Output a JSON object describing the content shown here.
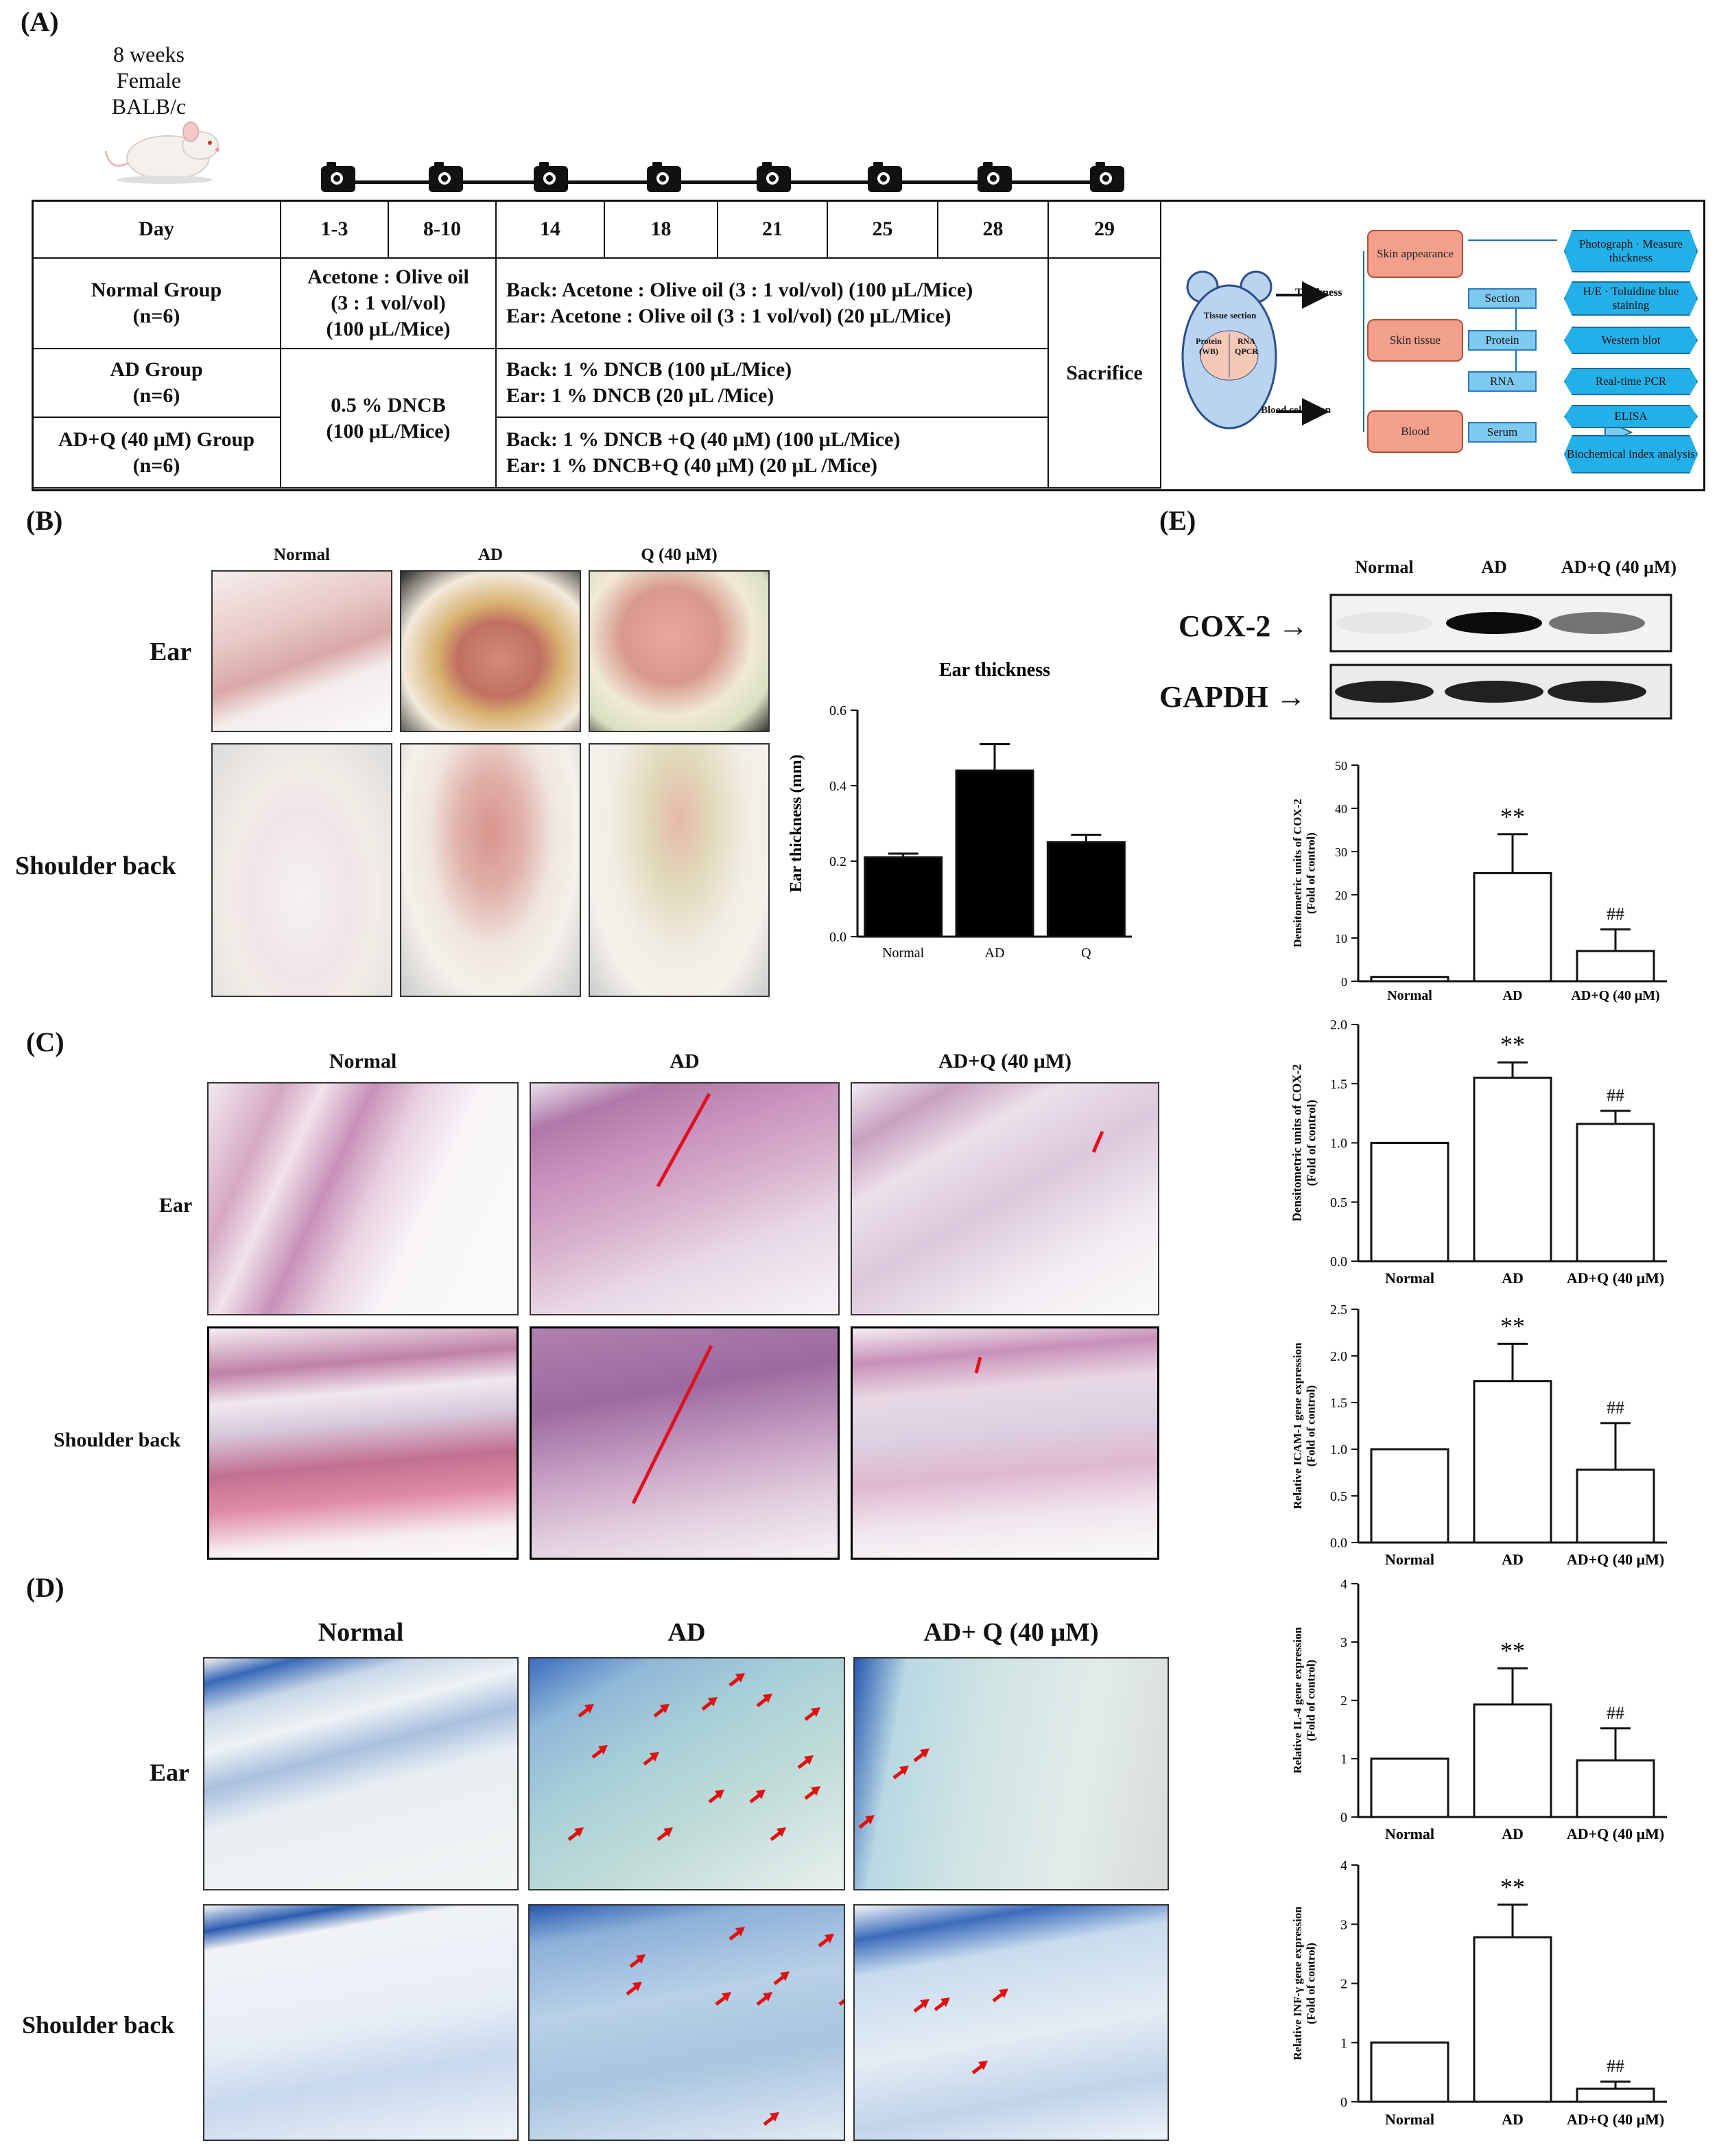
{
  "panels": {
    "a": "(A)",
    "b": "(B)",
    "c": "(C)",
    "d": "(D)",
    "e": "(E)"
  },
  "panel_a": {
    "mouse_line1": "8 weeks",
    "mouse_line2": "Female BALB/c",
    "table": {
      "day_header": "Day",
      "days": [
        "1-3",
        "8-10",
        "14",
        "18",
        "21",
        "25",
        "28",
        "29"
      ],
      "normal_group": "Normal Group",
      "ad_group": "AD Group",
      "adq_group": "AD+Q (40 μM) Group",
      "n": "(n=6)",
      "normal_early_1": "Acetone : Olive oil",
      "normal_early_2": "(3 : 1 vol/vol)",
      "normal_early_3": "(100 μL/Mice)",
      "normal_late_1": "Back: Acetone : Olive oil (3 : 1 vol/vol) (100 μL/Mice)",
      "normal_late_2": "Ear: Acetone : Olive oil (3 : 1 vol/vol) (20 μL/Mice)",
      "dncb_early_1": "0.5 % DNCB",
      "dncb_early_2": "(100 μL/Mice)",
      "ad_late_1": "Back: 1 % DNCB (100 μL/Mice)",
      "ad_late_2": "Ear: 1 % DNCB (20 μL /Mice)",
      "adq_late_1": "Back: 1 % DNCB +Q (40 μM) (100 μL/Mice)",
      "adq_late_2": "Ear: 1 % DNCB+Q (40 μM) (20 μL /Mice)",
      "sacrifice": "Sacrifice"
    },
    "flow": {
      "tissue_section": "Tissue section",
      "protein_wb": "Protein (WB)",
      "rna_qpcr": "RNA QPCR",
      "thickness": "Thickness",
      "blood_collection": "Blood collection",
      "skin_appearance": "Skin appearance",
      "skin_tissue": "Skin tissue",
      "blood": "Blood",
      "section": "Section",
      "protein": "Protein",
      "rna": "RNA",
      "serum": "Serum",
      "photograph": "Photograph · Measure thickness",
      "he_staining": "H/E · Toluidine blue staining",
      "western": "Western blot",
      "pcr": "Real-time PCR",
      "elisa": "ELISA",
      "biochem": "Biochemical index analysis"
    }
  },
  "panel_b": {
    "col_normal": "Normal",
    "col_ad": "AD",
    "col_q": "Q (40 μM)",
    "row_ear": "Ear",
    "row_back": "Shoulder back"
  },
  "panel_c": {
    "col_normal": "Normal",
    "col_ad": "AD",
    "col_adq": "AD+Q (40 μM)",
    "row_ear": "Ear",
    "row_back": "Shoulder back"
  },
  "panel_d": {
    "col_normal": "Normal",
    "col_ad": "AD",
    "col_adq": "AD+ Q (40 μM)",
    "row_ear": "Ear",
    "row_back": "Shoulder back"
  },
  "panel_e_blot": {
    "col_normal": "Normal",
    "col_ad": "AD",
    "col_adq": "AD+Q (40 μM)",
    "cox2": "COX-2 →",
    "gapdh": "GAPDH →",
    "cox2_band_intensity": [
      0.05,
      1.0,
      0.55
    ],
    "gapdh_band_intensity": [
      0.9,
      0.9,
      0.9
    ]
  },
  "chart_data": [
    {
      "type": "bar",
      "id": "ear",
      "title": "Ear thickness",
      "ylabel": "Ear thickness (mm)",
      "categories": [
        "Normal",
        "AD",
        "Q"
      ],
      "values": [
        0.21,
        0.44,
        0.25
      ],
      "errors": [
        0.01,
        0.07,
        0.02
      ],
      "ylim": [
        0,
        0.6
      ],
      "yticks": [
        "0.0",
        "0.2",
        "0.4",
        "0.6"
      ],
      "fill": "#000000",
      "annotations": [
        "",
        "",
        ""
      ]
    },
    {
      "type": "bar",
      "id": "cox2a",
      "ylabel": "Densitometric units of COX-2 (Fold of control)",
      "categories": [
        "Normal",
        "AD",
        "AD+Q (40 μM)"
      ],
      "values": [
        1,
        25,
        7
      ],
      "errors": [
        0,
        9,
        5
      ],
      "ylim": [
        0,
        50
      ],
      "yticks": [
        "0",
        "10",
        "20",
        "30",
        "40",
        "50"
      ],
      "fill": "#ffffff",
      "annotations": [
        "",
        "**",
        "##"
      ]
    },
    {
      "type": "bar",
      "id": "cox2b",
      "ylabel": "Densitometric units of COX-2 (Fold of control)",
      "categories": [
        "Normal",
        "AD",
        "AD+Q (40 μM)"
      ],
      "values": [
        1.0,
        1.55,
        1.16
      ],
      "errors": [
        0,
        0.13,
        0.11
      ],
      "ylim": [
        0,
        2.0
      ],
      "yticks": [
        "0.0",
        "0.5",
        "1.0",
        "1.5",
        "2.0"
      ],
      "fill": "#ffffff",
      "annotations": [
        "",
        "**",
        "##"
      ]
    },
    {
      "type": "bar",
      "id": "icam",
      "ylabel": "Relative ICAM-1 gene expression (Fold of control)",
      "categories": [
        "Normal",
        "AD",
        "AD+Q (40 μM)"
      ],
      "values": [
        1.0,
        1.73,
        0.78
      ],
      "errors": [
        0,
        0.4,
        0.5
      ],
      "ylim": [
        0,
        2.5
      ],
      "yticks": [
        "0.0",
        "0.5",
        "1.0",
        "1.5",
        "2.0",
        "2.5"
      ],
      "fill": "#ffffff",
      "annotations": [
        "",
        "**",
        "##"
      ]
    },
    {
      "type": "bar",
      "id": "il4",
      "ylabel": "Relative IL-4 gene expression (Fold of control)",
      "categories": [
        "Normal",
        "AD",
        "AD+Q (40 μM)"
      ],
      "values": [
        1.0,
        1.93,
        0.97
      ],
      "errors": [
        0,
        0.62,
        0.55
      ],
      "ylim": [
        0,
        4
      ],
      "yticks": [
        "0",
        "1",
        "2",
        "3",
        "4"
      ],
      "fill": "#ffffff",
      "annotations": [
        "",
        "**",
        "##"
      ]
    },
    {
      "type": "bar",
      "id": "infg",
      "ylabel": "Relative INF-γ gene expression (Fold of control)",
      "categories": [
        "Normal",
        "AD",
        "AD+Q (40 μM)"
      ],
      "values": [
        1.0,
        2.78,
        0.22
      ],
      "errors": [
        0,
        0.55,
        0.12
      ],
      "ylim": [
        0,
        4
      ],
      "yticks": [
        "0",
        "1",
        "2",
        "3",
        "4"
      ],
      "fill": "#ffffff",
      "annotations": [
        "",
        "**",
        "##"
      ]
    }
  ]
}
